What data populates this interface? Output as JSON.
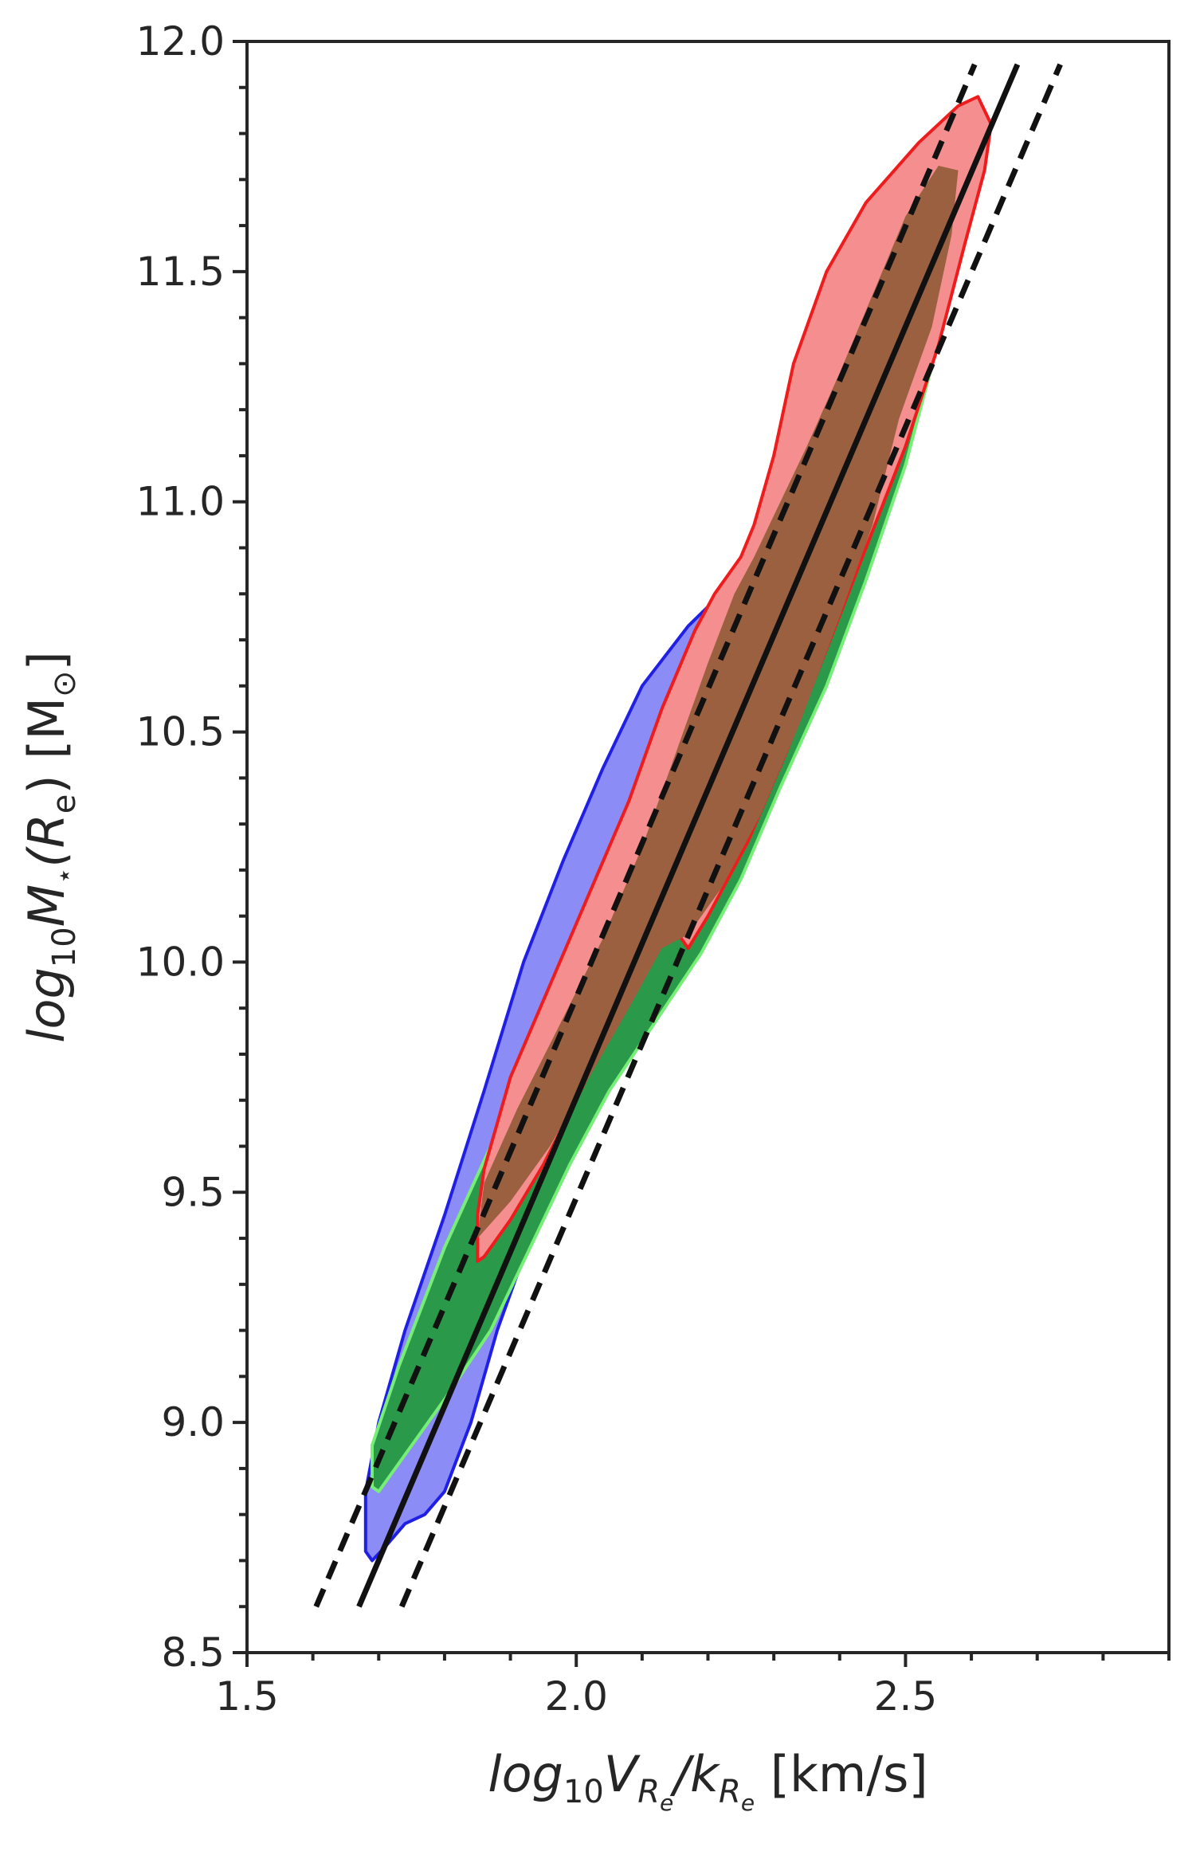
{
  "chart_data": {
    "type": "area",
    "title": "",
    "xlabel_parts": {
      "log": "log",
      "sub10": "10",
      "V": "V",
      "Rsub": "R",
      "esub": "e",
      "slash": "/",
      "k": "k",
      "unit": " [km/s]"
    },
    "ylabel_parts": {
      "log": "log",
      "sub10": "10",
      "M": "M",
      "star": "⋆",
      "R": "(R",
      "e": "e",
      "close": ")",
      "unit": " [M",
      "sun": "⊙",
      "end": "]"
    },
    "xlim": [
      1.5,
      2.9
    ],
    "ylim": [
      8.5,
      12.0
    ],
    "x_ticks": [
      1.5,
      2.0,
      2.5
    ],
    "x_tick_labels": [
      "1.5",
      "2.0",
      "2.5"
    ],
    "y_ticks": [
      8.5,
      9.0,
      9.5,
      10.0,
      10.5,
      11.0,
      11.5,
      12.0
    ],
    "y_tick_labels": [
      "8.5",
      "9.0",
      "9.5",
      "10.0",
      "10.5",
      "11.0",
      "11.5",
      "12.0"
    ],
    "grid": false,
    "legend": "none",
    "series": [
      {
        "kind": "contour",
        "fill": "#8c8cf7",
        "stroke": "#1f1fe6",
        "points": [
          [
            1.68,
            8.72
          ],
          [
            1.69,
            8.7
          ],
          [
            1.71,
            8.73
          ],
          [
            1.74,
            8.78
          ],
          [
            1.77,
            8.8
          ],
          [
            1.8,
            8.85
          ],
          [
            1.84,
            9.0
          ],
          [
            1.88,
            9.2
          ],
          [
            1.93,
            9.4
          ],
          [
            1.98,
            9.58
          ],
          [
            2.03,
            9.72
          ],
          [
            2.08,
            9.85
          ],
          [
            2.12,
            9.97
          ],
          [
            2.15,
            10.05
          ],
          [
            2.2,
            10.22
          ],
          [
            2.26,
            10.45
          ],
          [
            2.33,
            10.7
          ],
          [
            2.4,
            10.93
          ],
          [
            2.46,
            11.14
          ],
          [
            2.49,
            11.22
          ],
          [
            2.48,
            11.3
          ],
          [
            2.47,
            11.34
          ],
          [
            2.45,
            11.35
          ],
          [
            2.41,
            11.3
          ],
          [
            2.36,
            11.18
          ],
          [
            2.31,
            11.0
          ],
          [
            2.27,
            10.87
          ],
          [
            2.22,
            10.8
          ],
          [
            2.17,
            10.73
          ],
          [
            2.1,
            10.6
          ],
          [
            2.04,
            10.42
          ],
          [
            1.98,
            10.22
          ],
          [
            1.92,
            10.0
          ],
          [
            1.86,
            9.72
          ],
          [
            1.8,
            9.45
          ],
          [
            1.74,
            9.2
          ],
          [
            1.7,
            9.0
          ],
          [
            1.68,
            8.85
          ]
        ]
      },
      {
        "kind": "contour",
        "fill": "#2a9a4a",
        "stroke": "#77ee77",
        "points": [
          [
            1.69,
            8.86
          ],
          [
            1.7,
            8.85
          ],
          [
            1.74,
            8.93
          ],
          [
            1.8,
            9.05
          ],
          [
            1.87,
            9.2
          ],
          [
            1.93,
            9.38
          ],
          [
            1.99,
            9.56
          ],
          [
            2.05,
            9.72
          ],
          [
            2.12,
            9.87
          ],
          [
            2.19,
            10.02
          ],
          [
            2.25,
            10.18
          ],
          [
            2.31,
            10.38
          ],
          [
            2.38,
            10.6
          ],
          [
            2.44,
            10.83
          ],
          [
            2.5,
            11.08
          ],
          [
            2.55,
            11.35
          ],
          [
            2.58,
            11.6
          ],
          [
            2.58,
            11.72
          ],
          [
            2.55,
            11.74
          ],
          [
            2.5,
            11.62
          ],
          [
            2.45,
            11.45
          ],
          [
            2.4,
            11.28
          ],
          [
            2.35,
            11.12
          ],
          [
            2.3,
            10.98
          ],
          [
            2.25,
            10.82
          ],
          [
            2.2,
            10.62
          ],
          [
            2.14,
            10.4
          ],
          [
            2.08,
            10.18
          ],
          [
            2.01,
            9.98
          ],
          [
            1.94,
            9.8
          ],
          [
            1.87,
            9.6
          ],
          [
            1.8,
            9.38
          ],
          [
            1.73,
            9.12
          ],
          [
            1.69,
            8.95
          ]
        ]
      },
      {
        "kind": "contour",
        "fill": "#f58f8f",
        "stroke": "#ee1c1c",
        "points": [
          [
            1.85,
            9.35
          ],
          [
            1.86,
            9.36
          ],
          [
            1.9,
            9.44
          ],
          [
            1.95,
            9.56
          ],
          [
            2.0,
            9.7
          ],
          [
            2.05,
            9.85
          ],
          [
            2.1,
            9.98
          ],
          [
            2.13,
            10.06
          ],
          [
            2.15,
            10.08
          ],
          [
            2.16,
            10.05
          ],
          [
            2.17,
            10.03
          ],
          [
            2.2,
            10.1
          ],
          [
            2.26,
            10.26
          ],
          [
            2.32,
            10.46
          ],
          [
            2.38,
            10.68
          ],
          [
            2.44,
            10.9
          ],
          [
            2.5,
            11.12
          ],
          [
            2.55,
            11.34
          ],
          [
            2.59,
            11.56
          ],
          [
            2.62,
            11.72
          ],
          [
            2.63,
            11.82
          ],
          [
            2.61,
            11.88
          ],
          [
            2.58,
            11.86
          ],
          [
            2.52,
            11.78
          ],
          [
            2.44,
            11.65
          ],
          [
            2.38,
            11.5
          ],
          [
            2.33,
            11.3
          ],
          [
            2.3,
            11.1
          ],
          [
            2.27,
            10.95
          ],
          [
            2.25,
            10.88
          ],
          [
            2.21,
            10.8
          ],
          [
            2.18,
            10.72
          ],
          [
            2.13,
            10.55
          ],
          [
            2.08,
            10.35
          ],
          [
            2.02,
            10.15
          ],
          [
            1.96,
            9.95
          ],
          [
            1.9,
            9.75
          ],
          [
            1.86,
            9.55
          ],
          [
            1.85,
            9.45
          ]
        ]
      },
      {
        "kind": "contour",
        "fill": "#9a6040",
        "stroke": "none",
        "points": [
          [
            1.85,
            9.4
          ],
          [
            1.9,
            9.48
          ],
          [
            1.96,
            9.6
          ],
          [
            2.02,
            9.75
          ],
          [
            2.08,
            9.9
          ],
          [
            2.13,
            10.03
          ],
          [
            2.17,
            10.06
          ],
          [
            2.22,
            10.16
          ],
          [
            2.28,
            10.32
          ],
          [
            2.34,
            10.52
          ],
          [
            2.4,
            10.75
          ],
          [
            2.45,
            10.95
          ],
          [
            2.49,
            11.18
          ],
          [
            2.54,
            11.38
          ],
          [
            2.57,
            11.58
          ],
          [
            2.58,
            11.72
          ],
          [
            2.55,
            11.73
          ],
          [
            2.5,
            11.62
          ],
          [
            2.45,
            11.45
          ],
          [
            2.4,
            11.28
          ],
          [
            2.35,
            11.12
          ],
          [
            2.31,
            11.0
          ],
          [
            2.27,
            10.88
          ],
          [
            2.24,
            10.8
          ],
          [
            2.2,
            10.65
          ],
          [
            2.15,
            10.45
          ],
          [
            2.1,
            10.25
          ],
          [
            2.04,
            10.05
          ],
          [
            1.97,
            9.85
          ],
          [
            1.91,
            9.68
          ],
          [
            1.86,
            9.52
          ]
        ]
      },
      {
        "kind": "line",
        "style": "solid",
        "stroke": "#111111",
        "x": [
          1.67,
          2.67
        ],
        "y": [
          8.6,
          11.95
        ]
      },
      {
        "kind": "line",
        "style": "dashed",
        "stroke": "#111111",
        "x": [
          1.605,
          2.605
        ],
        "y": [
          8.6,
          11.95
        ]
      },
      {
        "kind": "line",
        "style": "dashed",
        "stroke": "#111111",
        "x": [
          1.735,
          2.735
        ],
        "y": [
          8.6,
          11.95
        ]
      }
    ]
  }
}
